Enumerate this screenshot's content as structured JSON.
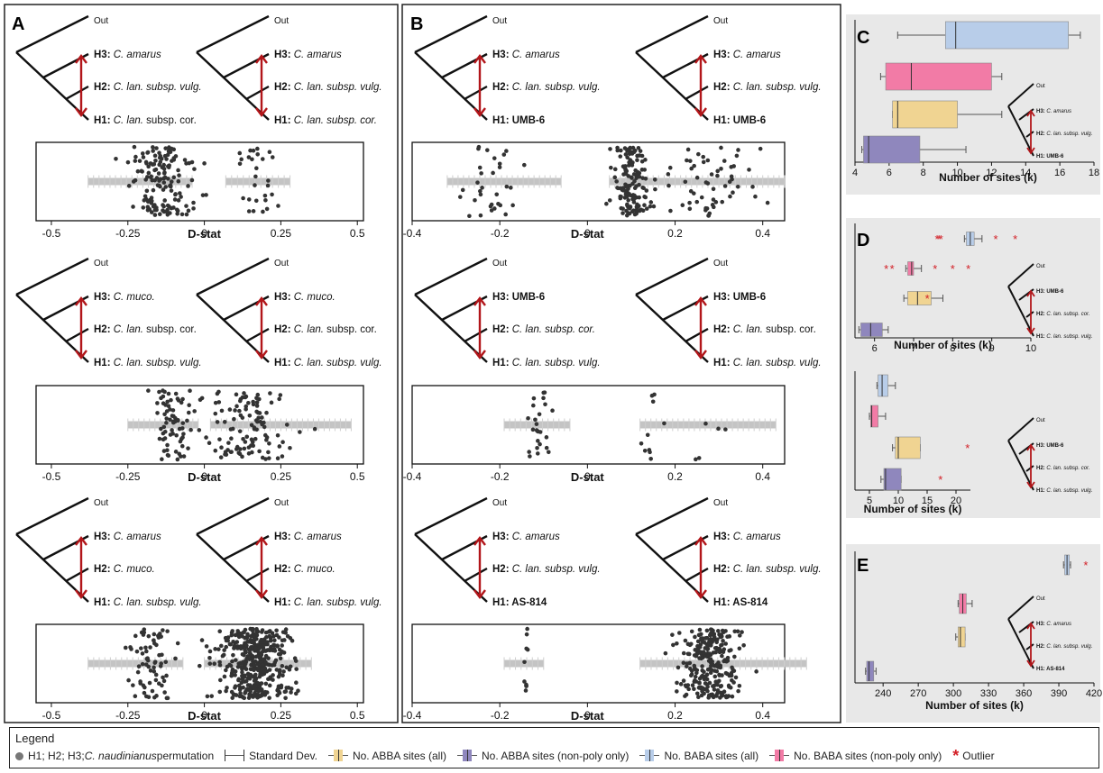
{
  "colors": {
    "abba_all": "#f0d492",
    "abba_np": "#8f87bd",
    "baba_all": "#b8cde9",
    "baba_np": "#f27ba6",
    "arrow": "#b2161a",
    "outlier": "#d32027",
    "panel_bg": "#e8e8e8",
    "dots": "#333333",
    "sd_bar": "#c4c4c4"
  },
  "panel_letters": {
    "a": "A",
    "b": "B",
    "c": "C",
    "d": "D",
    "e": "E"
  },
  "out_label": "Out",
  "trees": [
    {
      "h3p": "H3: ",
      "h3s": "C. amarus",
      "h2p": "H2: ",
      "h2s": "C. lan. subsp. vulg.",
      "h1p": "H1: ",
      "h1s": "C. lan.",
      "h1r": " subsp. cor."
    },
    {
      "h3p": "H3: ",
      "h3s": "C. amarus",
      "h2p": "H2: ",
      "h2s": "C. lan. subsp. vulg.",
      "h1p": "H1: ",
      "h1s": "C. lan. subsp. cor."
    },
    {
      "h3p": "H3: ",
      "h3s": "C. muco.",
      "h2p": "H2: ",
      "h2s": "C. lan.",
      "h2r": " subsp. cor.",
      "h1p": "H1: ",
      "h1s": "C. lan. subsp. vulg."
    },
    {
      "h3p": "H3: ",
      "h3s": "C. muco.",
      "h2p": "H2: ",
      "h2s": "C. lan.",
      "h2r": " subsp. cor.",
      "h1p": "H1: ",
      "h1s": "C. lan. subsp. vulg."
    },
    {
      "h3p": "H3: ",
      "h3s": "C. amarus",
      "h2p": "H2: ",
      "h2s": "C. muco.",
      "h1p": "H1: ",
      "h1s": "C. lan. subsp. vulg."
    },
    {
      "h3p": "H3: ",
      "h3s": "C. amarus",
      "h2p": "H2: ",
      "h2s": "C. muco.",
      "h1p": "H1: ",
      "h1s": "C. lan. subsp. vulg."
    },
    {
      "h3p": "H3: ",
      "h3s": "C. amarus",
      "h2p": "H2: ",
      "h2s": "C. lan. subsp. vulg.",
      "h1p": "H1: UMB-6"
    },
    {
      "h3p": "H3: ",
      "h3s": "C. amarus",
      "h2p": "H2: ",
      "h2s": "C. lan. subsp. vulg.",
      "h1p": "H1: UMB-6"
    },
    {
      "h3p": "H3: UMB-6",
      "h2p": "H2: ",
      "h2s": "C. lan. subsp. cor.",
      "h1p": "H1: ",
      "h1s": "C. lan. subsp. vulg."
    },
    {
      "h3p": "H3: UMB-6",
      "h2p": "H2: ",
      "h2s": "C. lan.",
      "h2r": " subsp. cor.",
      "h1p": "H1: ",
      "h1s": "C. lan. subsp. vulg."
    },
    {
      "h3p": "H3: ",
      "h3s": "C. amarus",
      "h2p": "H2: ",
      "h2s": "C. lan. subsp. vulg.",
      "h1p": "H1: AS-814"
    },
    {
      "h3p": "H3: ",
      "h3s": "C. amarus",
      "h2p": "H2: ",
      "h2s": "C. lan. subsp. vulg.",
      "h1p": "H1: AS-814"
    }
  ],
  "mini_trees": [
    {
      "h3": "H3: ",
      "h3s": "C. amarus",
      "h2": "H2: ",
      "h2s": "C. lan. subsp. vulg.",
      "h1": "H1: UMB-6"
    },
    {
      "h3": "H3: UMB-6",
      "h2": "H2: ",
      "h2s": "C. lan. subsp. cor.",
      "h1": "H1: ",
      "h1s": "C. lan. subsp. vulg."
    },
    {
      "h3": "H3: UMB-6",
      "h2": "H2: ",
      "h2s": "C. lan. subsp. cor.",
      "h1": "H1: ",
      "h1s": "C. lan. subsp. vulg."
    },
    {
      "h3": "H3: ",
      "h3s": "C. amarus",
      "h2": "H2: ",
      "h2s": "C. lan. subsp. vulg.",
      "h1": "H1: AS-814"
    }
  ],
  "chart_data": [
    {
      "type": "scatter",
      "xlabel": "D-stat",
      "xlim": [
        -0.55,
        0.52
      ],
      "ticks": [
        "-0.5",
        "-0.25",
        "0",
        "0.25",
        "0.5"
      ],
      "clusters": [
        {
          "center": -0.14,
          "spread": 0.1,
          "n": 150
        },
        {
          "center": 0.17,
          "spread": 0.06,
          "n": 28
        }
      ],
      "sd_ranges": [
        [
          -0.38,
          -0.04
        ],
        [
          0.07,
          0.28
        ]
      ]
    },
    {
      "type": "scatter",
      "xlabel": "D-stat",
      "xlim": [
        -0.4,
        0.45
      ],
      "ticks": [
        "-0.4",
        "-0.2",
        "0",
        "0.2",
        "0.4"
      ],
      "clusters": [
        {
          "center": -0.22,
          "spread": 0.06,
          "n": 32
        },
        {
          "center": 0.1,
          "spread": 0.04,
          "n": 140
        },
        {
          "center": 0.27,
          "spread": 0.1,
          "n": 60
        }
      ],
      "sd_ranges": [
        [
          -0.32,
          -0.06
        ],
        [
          0.05,
          0.45
        ]
      ]
    },
    {
      "type": "scatter",
      "xlabel": "D-stat",
      "xlim": [
        -0.55,
        0.52
      ],
      "ticks": [
        "-0.5",
        "-0.25",
        "0",
        "0.25",
        "0.5"
      ],
      "clusters": [
        {
          "center": -0.1,
          "spread": 0.06,
          "n": 70
        },
        {
          "center": 0.15,
          "spread": 0.14,
          "n": 110
        }
      ],
      "sd_ranges": [
        [
          -0.25,
          -0.02
        ],
        [
          0.02,
          0.48
        ]
      ]
    },
    {
      "type": "scatter",
      "xlabel": "D-stat",
      "xlim": [
        -0.4,
        0.45
      ],
      "ticks": [
        "-0.4",
        "-0.2",
        "0",
        "0.2",
        "0.4"
      ],
      "clusters": [
        {
          "center": -0.11,
          "spread": 0.03,
          "n": 25
        },
        {
          "center": 0.15,
          "spread": 0.03,
          "n": 10
        },
        {
          "center": 0.3,
          "spread": 0.08,
          "n": 5
        }
      ],
      "sd_ranges": [
        [
          -0.19,
          -0.04
        ],
        [
          0.12,
          0.43
        ]
      ]
    },
    {
      "type": "scatter",
      "xlabel": "D-stat",
      "xlim": [
        -0.55,
        0.52
      ],
      "ticks": [
        "-0.5",
        "-0.25",
        "0",
        "0.25",
        "0.5"
      ],
      "clusters": [
        {
          "center": -0.17,
          "spread": 0.07,
          "n": 70
        },
        {
          "center": 0.17,
          "spread": 0.11,
          "n": 420
        }
      ],
      "sd_ranges": [
        [
          -0.38,
          -0.07
        ],
        [
          0.0,
          0.35
        ]
      ]
    },
    {
      "type": "scatter",
      "xlabel": "D-stat",
      "xlim": [
        -0.4,
        0.45
      ],
      "ticks": [
        "-0.4",
        "-0.2",
        "0",
        "0.2",
        "0.4"
      ],
      "clusters": [
        {
          "center": -0.14,
          "spread": 0.01,
          "n": 10
        },
        {
          "center": 0.28,
          "spread": 0.07,
          "n": 260
        }
      ],
      "sd_ranges": [
        [
          -0.19,
          -0.1
        ],
        [
          0.12,
          0.5
        ]
      ]
    },
    {
      "type": "box",
      "xlabel": "Number of sites (k)",
      "xlim": [
        4,
        18
      ],
      "ticks": [
        "4",
        "6",
        "8",
        "10",
        "12",
        "14",
        "16",
        "18"
      ],
      "boxes": [
        {
          "series": "baba_all",
          "min": 6.5,
          "q1": 9.3,
          "med": 9.9,
          "q3": 16.5,
          "max": 17.2,
          "outliers": []
        },
        {
          "series": "baba_np",
          "min": 5.5,
          "q1": 5.8,
          "med": 7.3,
          "q3": 12.0,
          "max": 12.6,
          "outliers": []
        },
        {
          "series": "abba_all",
          "min": 6.2,
          "q1": 6.2,
          "med": 6.5,
          "q3": 10.0,
          "max": 12.6,
          "outliers": []
        },
        {
          "series": "abba_np",
          "min": 4.4,
          "q1": 4.5,
          "med": 4.8,
          "q3": 7.8,
          "max": 10.5,
          "outliers": []
        }
      ]
    },
    {
      "type": "box",
      "xlabel": "Number of sites (k)",
      "xlim": [
        5.5,
        10
      ],
      "ticks": [
        "6",
        "7",
        "8",
        "9",
        "10"
      ],
      "boxes": [
        {
          "series": "baba_all",
          "min": 8.3,
          "q1": 8.35,
          "med": 8.45,
          "q3": 8.55,
          "max": 8.75,
          "outliers": [
            7.6,
            7.65,
            7.7,
            9.1,
            9.6
          ]
        },
        {
          "series": "baba_np",
          "min": 6.8,
          "q1": 6.85,
          "med": 6.95,
          "q3": 7.0,
          "max": 7.2,
          "outliers": [
            6.3,
            6.45,
            7.55,
            8.0,
            8.4
          ]
        },
        {
          "series": "abba_all",
          "min": 6.75,
          "q1": 6.85,
          "med": 7.1,
          "q3": 7.45,
          "max": 7.75,
          "outliers": [
            7.35
          ]
        },
        {
          "series": "abba_np",
          "min": 5.6,
          "q1": 5.65,
          "med": 5.9,
          "q3": 6.2,
          "max": 6.35,
          "outliers": []
        }
      ]
    },
    {
      "type": "box",
      "xlabel": "Number of sites (k)",
      "xlim": [
        2.5,
        22.5
      ],
      "ticks": [
        "5",
        "10",
        "15",
        "20"
      ],
      "boxes": [
        {
          "series": "baba_all",
          "min": 6.3,
          "q1": 6.5,
          "med": 7.2,
          "q3": 8.2,
          "max": 9.5,
          "outliers": []
        },
        {
          "series": "baba_np",
          "min": 5.0,
          "q1": 5.2,
          "med": 5.4,
          "q3": 6.5,
          "max": 7.8,
          "outliers": []
        },
        {
          "series": "abba_all",
          "min": 9.0,
          "q1": 9.5,
          "med": 10.0,
          "q3": 13.8,
          "max": 13.8,
          "outliers": [
            22.0
          ]
        },
        {
          "series": "abba_np",
          "min": 7.0,
          "q1": 7.5,
          "med": 7.8,
          "q3": 10.5,
          "max": 10.5,
          "outliers": [
            17.3
          ]
        }
      ]
    },
    {
      "type": "box",
      "xlabel": "Number of sites (k)",
      "xlim": [
        216,
        420
      ],
      "ticks": [
        "240",
        "270",
        "300",
        "330",
        "360",
        "390",
        "420"
      ],
      "boxes": [
        {
          "series": "baba_all",
          "min": 394,
          "q1": 395,
          "med": 397,
          "q3": 399,
          "max": 400,
          "outliers": [
            413
          ]
        },
        {
          "series": "baba_np",
          "min": 304,
          "q1": 305,
          "med": 308,
          "q3": 311,
          "max": 316,
          "outliers": []
        },
        {
          "series": "abba_all",
          "min": 302,
          "q1": 304,
          "med": 306,
          "q3": 310,
          "max": 310,
          "outliers": []
        },
        {
          "series": "abba_np",
          "min": 225,
          "q1": 226,
          "med": 228,
          "q3": 232,
          "max": 234,
          "outliers": []
        }
      ]
    }
  ],
  "legend": {
    "title": "Legend",
    "perm_prefix": "H1; H2; H3; ",
    "perm_species": "C. naudinianus",
    "perm_suffix": " permutation",
    "std_dev": "Standard Dev.",
    "abba_all": "No. ABBA sites (all)",
    "abba_np": "No. ABBA sites (non-poly only)",
    "baba_all": "No. BABA sites (all)",
    "baba_np": "No. BABA sites (non-poly only)",
    "outlier": "Outlier"
  }
}
